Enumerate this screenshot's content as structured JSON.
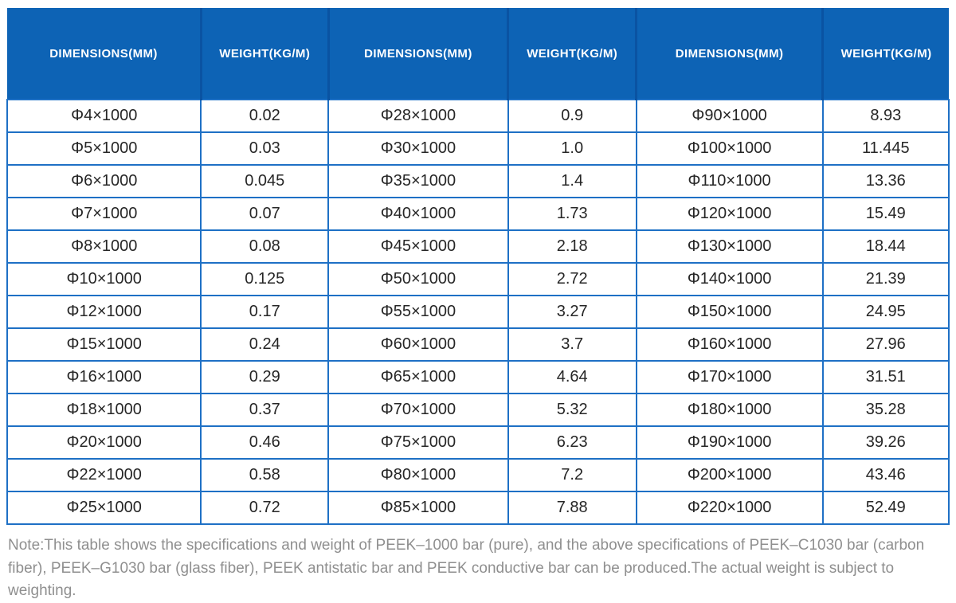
{
  "table": {
    "type": "table",
    "header_bg_color": "#0d63b5",
    "header_divider_color": "#0a53a2",
    "body_border_color": "#1e70c5",
    "columns": [
      "DIMENSIONS(MM)",
      "WEIGHT(KG/M)",
      "DIMENSIONS(MM)",
      "WEIGHT(KG/M)",
      "DIMENSIONS(MM)",
      "WEIGHT(KG/M)"
    ],
    "rows": [
      [
        "Φ4×1000",
        "0.02",
        "Φ28×1000",
        "0.9",
        "Φ90×1000",
        "8.93"
      ],
      [
        "Φ5×1000",
        "0.03",
        "Φ30×1000",
        "1.0",
        "Φ100×1000",
        "11.445"
      ],
      [
        "Φ6×1000",
        "0.045",
        "Φ35×1000",
        "1.4",
        "Φ110×1000",
        "13.36"
      ],
      [
        "Φ7×1000",
        "0.07",
        "Φ40×1000",
        "1.73",
        "Φ120×1000",
        "15.49"
      ],
      [
        "Φ8×1000",
        "0.08",
        "Φ45×1000",
        "2.18",
        "Φ130×1000",
        "18.44"
      ],
      [
        "Φ10×1000",
        "0.125",
        "Φ50×1000",
        "2.72",
        "Φ140×1000",
        "21.39"
      ],
      [
        "Φ12×1000",
        "0.17",
        "Φ55×1000",
        "3.27",
        "Φ150×1000",
        "24.95"
      ],
      [
        "Φ15×1000",
        "0.24",
        "Φ60×1000",
        "3.7",
        "Φ160×1000",
        "27.96"
      ],
      [
        "Φ16×1000",
        "0.29",
        "Φ65×1000",
        "4.64",
        "Φ170×1000",
        "31.51"
      ],
      [
        "Φ18×1000",
        "0.37",
        "Φ70×1000",
        "5.32",
        "Φ180×1000",
        "35.28"
      ],
      [
        "Φ20×1000",
        "0.46",
        "Φ75×1000",
        "6.23",
        "Φ190×1000",
        "39.26"
      ],
      [
        "Φ22×1000",
        "0.58",
        "Φ80×1000",
        "7.2",
        "Φ200×1000",
        "43.46"
      ],
      [
        "Φ25×1000",
        "0.72",
        "Φ85×1000",
        "7.88",
        "Φ220×1000",
        "52.49"
      ]
    ]
  },
  "note": {
    "text": "Note:This table shows the specifications and weight of PEEK–1000 bar (pure), and the above specifications of PEEK–C1030 bar (carbon fiber), PEEK–G1030 bar (glass fiber), PEEK antistatic bar and PEEK conductive bar can be produced.The actual weight is subject to weighting."
  }
}
